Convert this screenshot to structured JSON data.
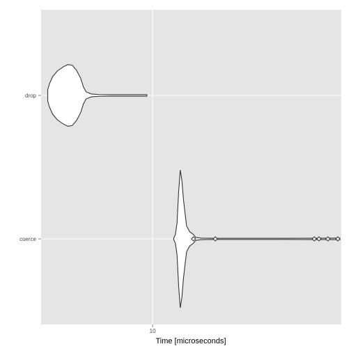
{
  "chart_data": {
    "type": "violin",
    "orientation": "horizontal",
    "title": "",
    "xlabel": "Time [microseconds]",
    "ylabel": "",
    "x_scale": "log10",
    "xlim": [
      5.5,
      27.5
    ],
    "x_ticks": [
      10
    ],
    "x_tick_labels": [
      "10"
    ],
    "grid": true,
    "legend": "none",
    "categories": [
      "drop",
      "coerce"
    ],
    "series": [
      {
        "category": "drop",
        "range": [
          5.7,
          9.7
        ],
        "density": [
          [
            5.7,
            0.08
          ],
          [
            5.75,
            0.16
          ],
          [
            5.85,
            0.26
          ],
          [
            6.0,
            0.34
          ],
          [
            6.2,
            0.4
          ],
          [
            6.35,
            0.43
          ],
          [
            6.5,
            0.42
          ],
          [
            6.65,
            0.35
          ],
          [
            6.8,
            0.24
          ],
          [
            6.9,
            0.12
          ],
          [
            7.0,
            0.05
          ],
          [
            7.2,
            0.02
          ],
          [
            7.5,
            0.012
          ],
          [
            8.0,
            0.01
          ],
          [
            9.0,
            0.01
          ],
          [
            9.7,
            0.01
          ]
        ],
        "outliers": []
      },
      {
        "category": "coerce",
        "range": [
          11.2,
          27.3
        ],
        "density": [
          [
            11.2,
            0.01
          ],
          [
            11.3,
            0.06
          ],
          [
            11.4,
            0.22
          ],
          [
            11.5,
            0.66
          ],
          [
            11.6,
            0.96
          ],
          [
            11.7,
            0.82
          ],
          [
            11.8,
            0.55
          ],
          [
            11.9,
            0.36
          ],
          [
            12.0,
            0.18
          ],
          [
            12.2,
            0.1
          ],
          [
            12.45,
            0.06
          ],
          [
            12.6,
            0.02
          ],
          [
            13.0,
            0.01
          ],
          [
            14.0,
            0.008
          ],
          [
            20.0,
            0.008
          ],
          [
            27.3,
            0.01
          ]
        ],
        "outliers": [
          12.45,
          14.0,
          23.8,
          24.4,
          25.6,
          27.0
        ]
      }
    ]
  },
  "colors": {
    "panel_background": "#e5e5e5",
    "grid": "#ffffff",
    "violin_fill": "#ffffff",
    "violin_stroke": "#333333",
    "tick_text": "#4d4d4d",
    "axis_title": "#000000"
  }
}
